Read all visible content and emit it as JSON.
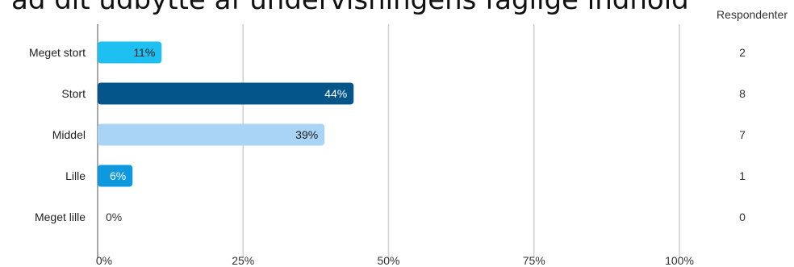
{
  "title": "ad dit udbytte af undervisningens faglige indhold",
  "respondents_header": "Respondenter",
  "chart_data": {
    "type": "bar",
    "orientation": "horizontal",
    "categories": [
      "Meget stort",
      "Stort",
      "Middel",
      "Lille",
      "Meget lille"
    ],
    "values": [
      11,
      44,
      39,
      6,
      0
    ],
    "value_labels": [
      "11%",
      "44%",
      "39%",
      "6%",
      "0%"
    ],
    "respondents": [
      "2",
      "8",
      "7",
      "1",
      "0"
    ],
    "colors": [
      "#1ec0f2",
      "#04558a",
      "#a9d4f5",
      "#0d98e0",
      "#1ec0f2"
    ],
    "label_colors": [
      "#1a1a1a",
      "#ffffff",
      "#1a1a1a",
      "#ffffff",
      "#333333"
    ],
    "xlim": [
      0,
      100
    ],
    "xticks": [
      0,
      25,
      50,
      75,
      100
    ],
    "xtick_labels": [
      "0%",
      "25%",
      "50%",
      "75%",
      "100%"
    ],
    "grid": true
  }
}
